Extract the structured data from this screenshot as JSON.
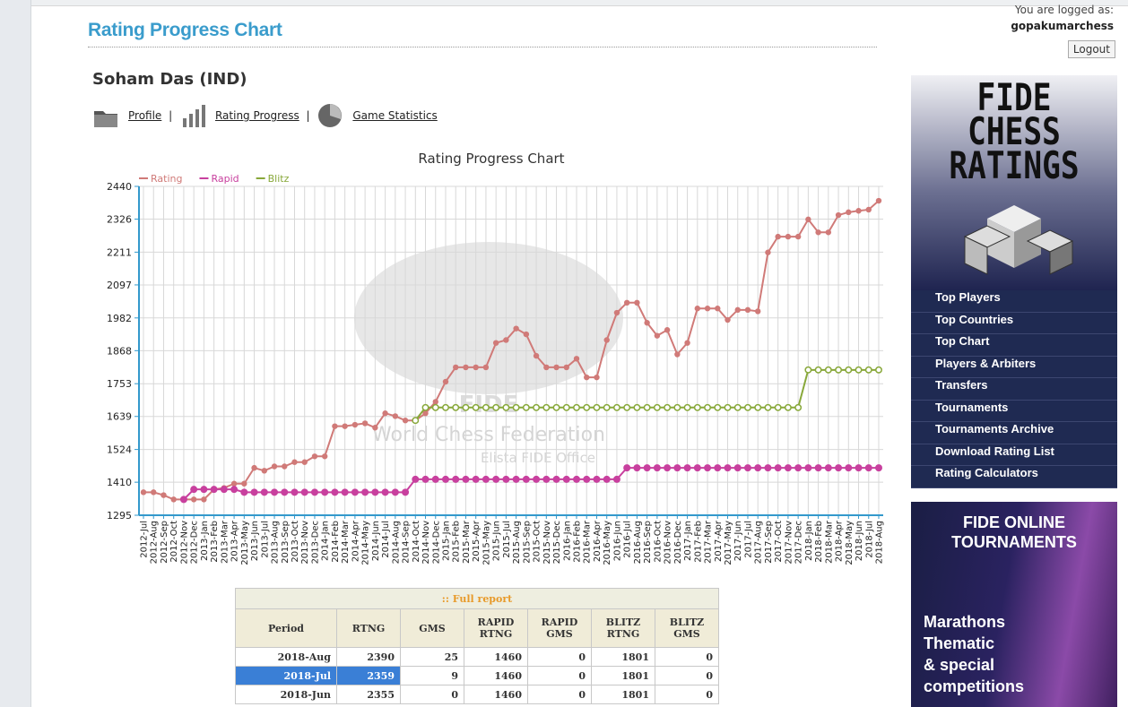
{
  "page": {
    "heading": "Rating Progress Chart",
    "logged_label": "You are logged as:",
    "username": "gopakumarchess",
    "logout": "Logout",
    "player": "Soham Das (IND)",
    "nav": [
      "Profile",
      "Rating Progress",
      "Game Statistics"
    ],
    "watermark": {
      "logo": "FIDE",
      "line1": "World Chess Federation",
      "line2": "Elista FIDE Office"
    }
  },
  "sidebar": {
    "logo": [
      "FIDE",
      "CHESS",
      "RATINGS"
    ],
    "menu": [
      "Top Players",
      "Top Countries",
      "Top Chart",
      "Players & Arbiters",
      "Transfers",
      "Tournaments",
      "Tournaments Archive",
      "Download Rating List",
      "Rating Calculators"
    ],
    "ad": {
      "title": "FIDE ONLINE TOURNAMENTS",
      "lines": [
        "Marathons",
        "Thematic",
        "& special",
        "competitions"
      ]
    }
  },
  "chart_data": {
    "type": "line",
    "title": "Rating Progress Chart",
    "categories": [
      "2012-Jul",
      "2012-Aug",
      "2012-Sep",
      "2012-Oct",
      "2012-Nov",
      "2012-Dec",
      "2013-Jan",
      "2013-Feb",
      "2013-Mar",
      "2013-Apr",
      "2013-May",
      "2013-Jun",
      "2013-Jul",
      "2013-Aug",
      "2013-Sep",
      "2013-Oct",
      "2013-Nov",
      "2013-Dec",
      "2014-Jan",
      "2014-Feb",
      "2014-Mar",
      "2014-Apr",
      "2014-May",
      "2014-Jun",
      "2014-Jul",
      "2014-Aug",
      "2014-Sep",
      "2014-Oct",
      "2014-Nov",
      "2014-Dec",
      "2015-Jan",
      "2015-Feb",
      "2015-Mar",
      "2015-Apr",
      "2015-May",
      "2015-Jun",
      "2015-Jul",
      "2015-Aug",
      "2015-Sep",
      "2015-Oct",
      "2015-Nov",
      "2015-Dec",
      "2016-Jan",
      "2016-Feb",
      "2016-Mar",
      "2016-Apr",
      "2016-May",
      "2016-Jun",
      "2016-Jul",
      "2016-Aug",
      "2016-Sep",
      "2016-Oct",
      "2016-Nov",
      "2016-Dec",
      "2017-Jan",
      "2017-Feb",
      "2017-Mar",
      "2017-Apr",
      "2017-May",
      "2017-Jun",
      "2017-Jul",
      "2017-Aug",
      "2017-Sep",
      "2017-Oct",
      "2017-Nov",
      "2017-Dec",
      "2018-Jan",
      "2018-Feb",
      "2018-Mar",
      "2018-Apr",
      "2018-May",
      "2018-Jun",
      "2018-Jul",
      "2018-Aug"
    ],
    "series": [
      {
        "name": "Rating",
        "color": "#d07a78",
        "values": [
          1375,
          1375,
          1365,
          1350,
          1350,
          1350,
          1350,
          1385,
          1390,
          1405,
          1405,
          1460,
          1450,
          1465,
          1465,
          1480,
          1480,
          1500,
          1500,
          1605,
          1605,
          1610,
          1615,
          1600,
          1650,
          1640,
          1625,
          1625,
          1650,
          1690,
          1760,
          1810,
          1810,
          1810,
          1810,
          1895,
          1905,
          1945,
          1925,
          1850,
          1810,
          1810,
          1810,
          1840,
          1775,
          1775,
          1905,
          2000,
          2035,
          2035,
          1965,
          1920,
          1940,
          1855,
          1895,
          2015,
          2015,
          2015,
          1975,
          2010,
          2010,
          2005,
          2210,
          2265,
          2265,
          2265,
          2325,
          2280,
          2280,
          2340,
          2350,
          2355,
          2359,
          2390
        ]
      },
      {
        "name": "Rapid",
        "color": "#c8409e",
        "values": [
          null,
          null,
          null,
          null,
          1350,
          1385,
          1385,
          1385,
          1385,
          1385,
          1375,
          1375,
          1375,
          1375,
          1375,
          1375,
          1375,
          1375,
          1375,
          1375,
          1375,
          1375,
          1375,
          1375,
          1375,
          1375,
          1375,
          1420,
          1420,
          1420,
          1420,
          1420,
          1420,
          1420,
          1420,
          1420,
          1420,
          1420,
          1420,
          1420,
          1420,
          1420,
          1420,
          1420,
          1420,
          1420,
          1420,
          1420,
          1460,
          1460,
          1460,
          1460,
          1460,
          1460,
          1460,
          1460,
          1460,
          1460,
          1460,
          1460,
          1460,
          1460,
          1460,
          1460,
          1460,
          1460,
          1460,
          1460,
          1460,
          1460,
          1460,
          1460,
          1460,
          1460
        ]
      },
      {
        "name": "Blitz",
        "color": "#88a83a",
        "values": [
          null,
          null,
          null,
          null,
          null,
          null,
          null,
          null,
          null,
          null,
          null,
          null,
          null,
          null,
          null,
          null,
          null,
          null,
          null,
          null,
          null,
          null,
          null,
          null,
          null,
          null,
          null,
          1625,
          1670,
          1670,
          1670,
          1670,
          1670,
          1670,
          1670,
          1670,
          1670,
          1670,
          1670,
          1670,
          1670,
          1670,
          1670,
          1670,
          1670,
          1670,
          1670,
          1670,
          1670,
          1670,
          1670,
          1670,
          1670,
          1670,
          1670,
          1670,
          1670,
          1670,
          1670,
          1670,
          1670,
          1670,
          1670,
          1670,
          1670,
          1670,
          1801,
          1801,
          1801,
          1801,
          1801,
          1801,
          1801,
          1801
        ]
      }
    ],
    "ylim": [
      1295,
      2440
    ],
    "yticks": [
      1295,
      1410,
      1524,
      1639,
      1753,
      1868,
      1982,
      2097,
      2211,
      2326,
      2440
    ],
    "grid": true
  },
  "table": {
    "caption": ":: Full report",
    "header": [
      "Period",
      "RTNG",
      "GMS",
      "RAPID RTNG",
      "RAPID GMS",
      "BLITZ RTNG",
      "BLITZ GMS"
    ],
    "rows": [
      [
        "2018-Aug",
        "2390",
        "25",
        "1460",
        "0",
        "1801",
        "0"
      ],
      [
        "2018-Jul",
        "2359",
        "9",
        "1460",
        "0",
        "1801",
        "0"
      ],
      [
        "2018-Jun",
        "2355",
        "0",
        "1460",
        "0",
        "1801",
        "0"
      ]
    ]
  }
}
